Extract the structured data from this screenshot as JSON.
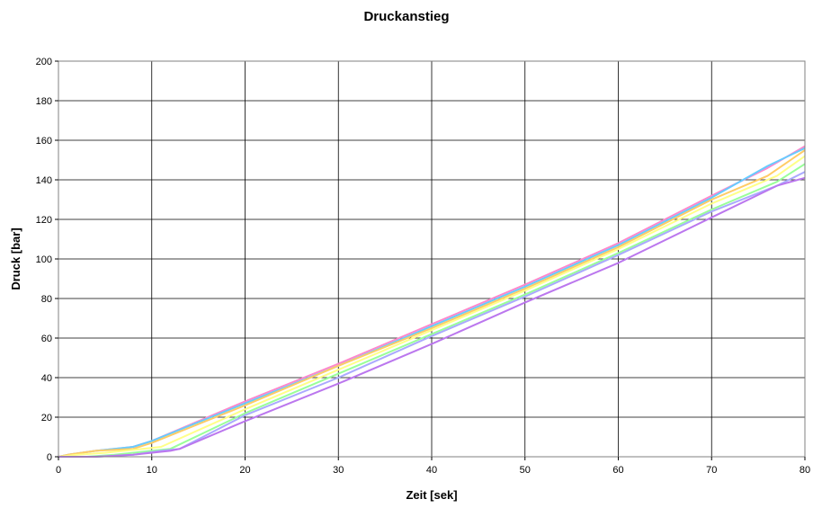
{
  "chart_data": {
    "type": "line",
    "title": "Druckanstieg",
    "xlabel": "Zeit [sek]",
    "ylabel": "Druck  [bar]",
    "xlim": [
      0,
      80
    ],
    "ylim": [
      0,
      200
    ],
    "xticks": [
      0,
      10,
      20,
      30,
      40,
      50,
      60,
      70,
      80
    ],
    "yticks": [
      0,
      20,
      40,
      60,
      80,
      100,
      120,
      140,
      160,
      180,
      200
    ],
    "grid": true,
    "legend": "none",
    "series": [
      {
        "color": "#ff88cc",
        "points": [
          [
            0,
            0
          ],
          [
            1,
            1
          ],
          [
            4,
            3
          ],
          [
            8,
            5
          ],
          [
            10,
            8
          ],
          [
            20,
            28
          ],
          [
            30,
            47
          ],
          [
            40,
            67
          ],
          [
            50,
            87
          ],
          [
            60,
            108
          ],
          [
            70,
            132
          ],
          [
            76,
            146
          ],
          [
            80,
            157
          ]
        ]
      },
      {
        "color": "#66ccff",
        "points": [
          [
            0,
            0
          ],
          [
            1,
            1
          ],
          [
            4,
            3
          ],
          [
            8,
            5
          ],
          [
            10,
            8
          ],
          [
            20,
            27
          ],
          [
            30,
            46
          ],
          [
            40,
            66
          ],
          [
            50,
            86
          ],
          [
            60,
            107
          ],
          [
            70,
            131
          ],
          [
            76,
            147
          ],
          [
            80,
            156
          ]
        ]
      },
      {
        "color": "#ffcc66",
        "points": [
          [
            0,
            0
          ],
          [
            1,
            1
          ],
          [
            4,
            3
          ],
          [
            8,
            4
          ],
          [
            10,
            7
          ],
          [
            20,
            26
          ],
          [
            30,
            46
          ],
          [
            40,
            65
          ],
          [
            50,
            85
          ],
          [
            60,
            106
          ],
          [
            70,
            130
          ],
          [
            76,
            142
          ],
          [
            80,
            155
          ]
        ]
      },
      {
        "color": "#ffff88",
        "points": [
          [
            0,
            0
          ],
          [
            2,
            1
          ],
          [
            5,
            2
          ],
          [
            9,
            4
          ],
          [
            11,
            5
          ],
          [
            20,
            24
          ],
          [
            30,
            44
          ],
          [
            40,
            64
          ],
          [
            50,
            84
          ],
          [
            60,
            105
          ],
          [
            70,
            128
          ],
          [
            77,
            142
          ],
          [
            80,
            152
          ]
        ]
      },
      {
        "color": "#99ff99",
        "points": [
          [
            0,
            0
          ],
          [
            3,
            0
          ],
          [
            6,
            1
          ],
          [
            10,
            3
          ],
          [
            12,
            4
          ],
          [
            20,
            22
          ],
          [
            30,
            42
          ],
          [
            40,
            62
          ],
          [
            50,
            82
          ],
          [
            60,
            103
          ],
          [
            70,
            125
          ],
          [
            77,
            139
          ],
          [
            80,
            148
          ]
        ]
      },
      {
        "color": "#aaaaff",
        "points": [
          [
            0,
            0
          ],
          [
            4,
            0
          ],
          [
            8,
            1
          ],
          [
            11,
            3
          ],
          [
            13,
            4
          ],
          [
            20,
            21
          ],
          [
            30,
            40
          ],
          [
            40,
            61
          ],
          [
            50,
            81
          ],
          [
            60,
            102
          ],
          [
            70,
            124
          ],
          [
            77,
            137
          ],
          [
            80,
            144
          ]
        ]
      },
      {
        "color": "#bb77ee",
        "points": [
          [
            0,
            0
          ],
          [
            4,
            0
          ],
          [
            8,
            1
          ],
          [
            12,
            3
          ],
          [
            13,
            4
          ],
          [
            20,
            18
          ],
          [
            30,
            37
          ],
          [
            40,
            57
          ],
          [
            50,
            78
          ],
          [
            60,
            98
          ],
          [
            70,
            121
          ],
          [
            77,
            137
          ],
          [
            80,
            141
          ]
        ]
      }
    ]
  }
}
